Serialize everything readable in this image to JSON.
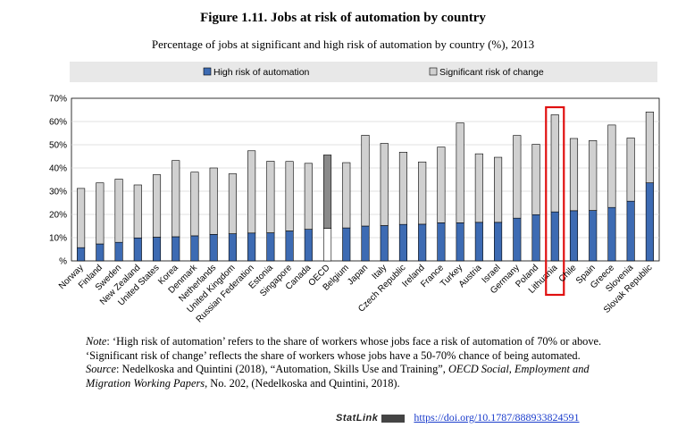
{
  "chart_data": {
    "type": "bar",
    "stacked": true,
    "title": "Figure 1.11. Jobs at risk of automation by country",
    "subtitle": "Percentage of jobs at significant and high risk of automation by country (%), 2013",
    "xlabel": "",
    "ylabel": "",
    "ylim": [
      0,
      70
    ],
    "yticks": [
      "%",
      "10%",
      "20%",
      "30%",
      "40%",
      "50%",
      "60%",
      "70%"
    ],
    "grid": true,
    "legend_position": "top",
    "categories": [
      "Norway",
      "Finland",
      "Sweden",
      "New Zealand",
      "United States",
      "Korea",
      "Denmark",
      "Netherlands",
      "United Kingdom",
      "Russian Federation",
      "Estonia",
      "Singapore",
      "Canada",
      "OECD",
      "Belgium",
      "Japan",
      "Italy",
      "Czech Republic",
      "Ireland",
      "France",
      "Turkey",
      "Austria",
      "Israel",
      "Germany",
      "Poland",
      "Lithuania",
      "Chile",
      "Spain",
      "Greece",
      "Slovenia",
      "Slovak Republic"
    ],
    "series": [
      {
        "name": "High risk of automation",
        "color": "#3d6bb3",
        "values": [
          5.7,
          7.3,
          8.0,
          9.9,
          10.2,
          10.4,
          10.8,
          11.4,
          11.7,
          12.0,
          12.1,
          12.9,
          13.6,
          14.0,
          14.2,
          15.0,
          15.2,
          15.7,
          15.8,
          16.4,
          16.4,
          16.6,
          16.6,
          18.4,
          19.9,
          21.1,
          21.6,
          21.7,
          23.0,
          25.7,
          33.6
        ]
      },
      {
        "name": "Significant risk of change",
        "color": "#d0d0d0",
        "values": [
          25.5,
          26.3,
          27.2,
          22.8,
          26.9,
          32.8,
          27.4,
          28.6,
          25.8,
          35.4,
          30.8,
          29.9,
          28.4,
          31.6,
          28.1,
          39.1,
          35.4,
          31.1,
          26.8,
          32.6,
          43.0,
          29.5,
          28.0,
          35.6,
          30.3,
          41.8,
          31.1,
          30.1,
          35.5,
          27.2,
          30.5
        ]
      }
    ],
    "highlight_category": "OECD",
    "highlight_colors": {
      "high": "#ffffff",
      "significant": "#8a8a8a"
    },
    "boxed_category": "Lithuania",
    "box_color": "#e01010"
  },
  "notes": {
    "note_label": "Note",
    "note_text": ": ‘High risk of automation’ refers to the share of workers whose jobs face a risk of automation of 70% or above. ‘Significant risk of change’ reflects the share of workers whose jobs have a 50-70% chance of being automated.",
    "source_label": "Source",
    "source_text_1": ": Nedelkoska and Quintini (2018), “Automation, Skills Use and Training”, ",
    "source_italic": "OECD Social, Employment and Migration Working Papers",
    "source_text_2": ", No. 202, (Nedelkoska and Quintini, 2018)."
  },
  "statlink": {
    "brand": "StatLink",
    "url": "https://doi.org/10.1787/888933824591"
  }
}
